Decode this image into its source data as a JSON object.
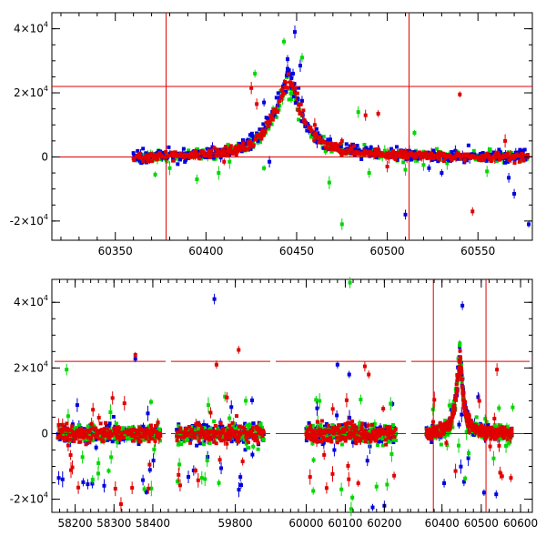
{
  "chart_data": [
    {
      "type": "scatter",
      "panel": "top",
      "title": "",
      "xlabel": "",
      "ylabel": "",
      "xlim": [
        60315,
        60580
      ],
      "ylim": [
        -26000,
        45000
      ],
      "xticks": [
        {
          "value": 60350,
          "label": "60350"
        },
        {
          "value": 60400,
          "label": "60400"
        },
        {
          "value": 60450,
          "label": "60450"
        },
        {
          "value": 60500,
          "label": "60500"
        },
        {
          "value": 60550,
          "label": "60550"
        }
      ],
      "yticks": [
        {
          "value": -20000,
          "base": "-2×10",
          "exp": "4"
        },
        {
          "value": 0,
          "base": "0",
          "exp": ""
        },
        {
          "value": 20000,
          "base": "2×10",
          "exp": "4"
        },
        {
          "value": 40000,
          "base": "4×10",
          "exp": "4"
        }
      ],
      "reference_lines": {
        "vertical": [
          60378,
          60512
        ],
        "horizontal": [
          0,
          22000
        ]
      },
      "colors": {
        "blue": "#0000e0",
        "red": "#e00000",
        "green": "#00d800"
      },
      "model_curve": {
        "color": "#e00000",
        "x": [
          60360,
          60380,
          60400,
          60415,
          60425,
          60432,
          60438,
          60442,
          60445,
          60448,
          60452,
          60458,
          60465,
          60475,
          60490,
          60510,
          60540,
          60580
        ],
        "y": [
          0,
          200,
          800,
          2000,
          4200,
          8000,
          14000,
          20000,
          23500,
          21500,
          14500,
          7500,
          4200,
          2300,
          1200,
          600,
          200,
          80
        ]
      },
      "outliers": {
        "blue": [
          [
            60449,
            39000
          ],
          [
            60445,
            30500
          ],
          [
            60452,
            28500
          ],
          [
            60432,
            17000
          ],
          [
            60435,
            -1500
          ],
          [
            60453,
            17500
          ],
          [
            60510,
            -18000
          ],
          [
            60570,
            -11500
          ],
          [
            60578,
            -21000
          ],
          [
            60567,
            -6500
          ],
          [
            60523,
            -3500
          ],
          [
            60530,
            -5000
          ],
          [
            60445,
            27500
          ],
          [
            60448,
            26000
          ]
        ],
        "red": [
          [
            60540,
            19500
          ],
          [
            60425,
            21500
          ],
          [
            60428,
            16500
          ],
          [
            60488,
            13000
          ],
          [
            60495,
            13500
          ],
          [
            60475,
            5000
          ],
          [
            60547,
            -17000
          ],
          [
            60565,
            5000
          ],
          [
            60460,
            10000
          ],
          [
            60500,
            -3000
          ],
          [
            60410,
            -1500
          ]
        ],
        "green": [
          [
            60443,
            36000
          ],
          [
            60427,
            26000
          ],
          [
            60453,
            31000
          ],
          [
            60380,
            -3500
          ],
          [
            60372,
            -5500
          ],
          [
            60395,
            -7000
          ],
          [
            60413,
            -1500
          ],
          [
            60475,
            -21000
          ],
          [
            60468,
            -8000
          ],
          [
            60484,
            14000
          ],
          [
            60490,
            -5000
          ],
          [
            60510,
            -4000
          ],
          [
            60520,
            -2500
          ],
          [
            60533,
            -2000
          ],
          [
            60555,
            -4500
          ],
          [
            60515,
            7500
          ],
          [
            60447,
            18000
          ],
          [
            60407,
            -5000
          ],
          [
            60437,
            15000
          ],
          [
            60432,
            -3500
          ]
        ]
      },
      "dense_series": {
        "blue": {
          "x_range": [
            60360,
            60578
          ],
          "scatter": 900,
          "peak_scale": 1.07
        },
        "red": {
          "x_range": [
            60360,
            60578
          ],
          "scatter": 650,
          "peak_scale": 1.0
        },
        "green": {
          "x_range": [
            60360,
            60578
          ],
          "scatter": 800,
          "peak_scale": 0.96
        }
      }
    },
    {
      "type": "scatter",
      "panel": "bottom",
      "title": "",
      "xlabel": "",
      "ylabel": "",
      "ylim": [
        -24000,
        47000
      ],
      "segments": [
        {
          "xlim": [
            58140,
            58440
          ]
        },
        {
          "xlim": [
            59640,
            59890
          ]
        },
        {
          "xlim": [
            59915,
            60262
          ]
        },
        {
          "xlim": [
            60315,
            60630
          ]
        }
      ],
      "xticks": [
        {
          "value": 58200,
          "label": "58200"
        },
        {
          "value": 58300,
          "label": "58300"
        },
        {
          "value": 58400,
          "label": "58400"
        },
        {
          "value": 59800,
          "label": "59800"
        },
        {
          "value": 60000,
          "label": "60000"
        },
        {
          "value": 60100,
          "label": "60100"
        },
        {
          "value": 60200,
          "label": "60200"
        },
        {
          "value": 60400,
          "label": "60400"
        },
        {
          "value": 60500,
          "label": "60500"
        },
        {
          "value": 60600,
          "label": "60600"
        }
      ],
      "yticks": [
        {
          "value": -20000,
          "base": "-2×10",
          "exp": "4"
        },
        {
          "value": 0,
          "base": "0",
          "exp": ""
        },
        {
          "value": 20000,
          "base": "2×10",
          "exp": "4"
        },
        {
          "value": 40000,
          "base": "4×10",
          "exp": "4"
        }
      ],
      "reference_lines": {
        "vertical": [
          60378,
          60512
        ],
        "horizontal": [
          0,
          22000
        ]
      },
      "colors": {
        "blue": "#0000e0",
        "red": "#e00000",
        "green": "#00d800"
      },
      "seasons": [
        {
          "x_range": [
            58155,
            58420
          ],
          "scatter": 1200,
          "outlier_rate": 0.06
        },
        {
          "x_range": [
            59660,
            59868
          ],
          "scatter": 1500,
          "outlier_rate": 0.08
        },
        {
          "x_range": [
            60000,
            60230
          ],
          "scatter": 1400,
          "outlier_rate": 0.07
        },
        {
          "x_range": [
            60360,
            60578
          ],
          "scatter": 900,
          "outlier_rate": 0.03
        }
      ],
      "outliers": {
        "blue": [
          [
            58355,
            22800
          ],
          [
            59750,
            41000
          ],
          [
            60072,
            -5000
          ],
          [
            60080,
            21000
          ],
          [
            60110,
            18000
          ],
          [
            60170,
            -22500
          ],
          [
            60200,
            -22000
          ],
          [
            60452,
            39000
          ],
          [
            60507,
            -18000
          ],
          [
            60538,
            -18500
          ]
        ],
        "red": [
          [
            58355,
            24000
          ],
          [
            59808,
            25500
          ],
          [
            59755,
            21000
          ],
          [
            59780,
            11000
          ],
          [
            60150,
            20500
          ],
          [
            60160,
            18000
          ],
          [
            60540,
            19500
          ],
          [
            60553,
            -13000
          ],
          [
            60068,
            7500
          ],
          [
            59763,
            -8000
          ],
          [
            58318,
            -21500
          ]
        ],
        "green": [
          [
            58178,
            19500
          ],
          [
            60112,
            46000
          ],
          [
            58245,
            -14000
          ],
          [
            58260,
            -9000
          ],
          [
            59720,
            -13500
          ],
          [
            60090,
            -17000
          ],
          [
            60115,
            -23000
          ],
          [
            60118,
            -19500
          ],
          [
            59825,
            10000
          ],
          [
            60570,
            -3000
          ],
          [
            60468,
            -6000
          ],
          [
            60580,
            8000
          ]
        ]
      }
    }
  ]
}
